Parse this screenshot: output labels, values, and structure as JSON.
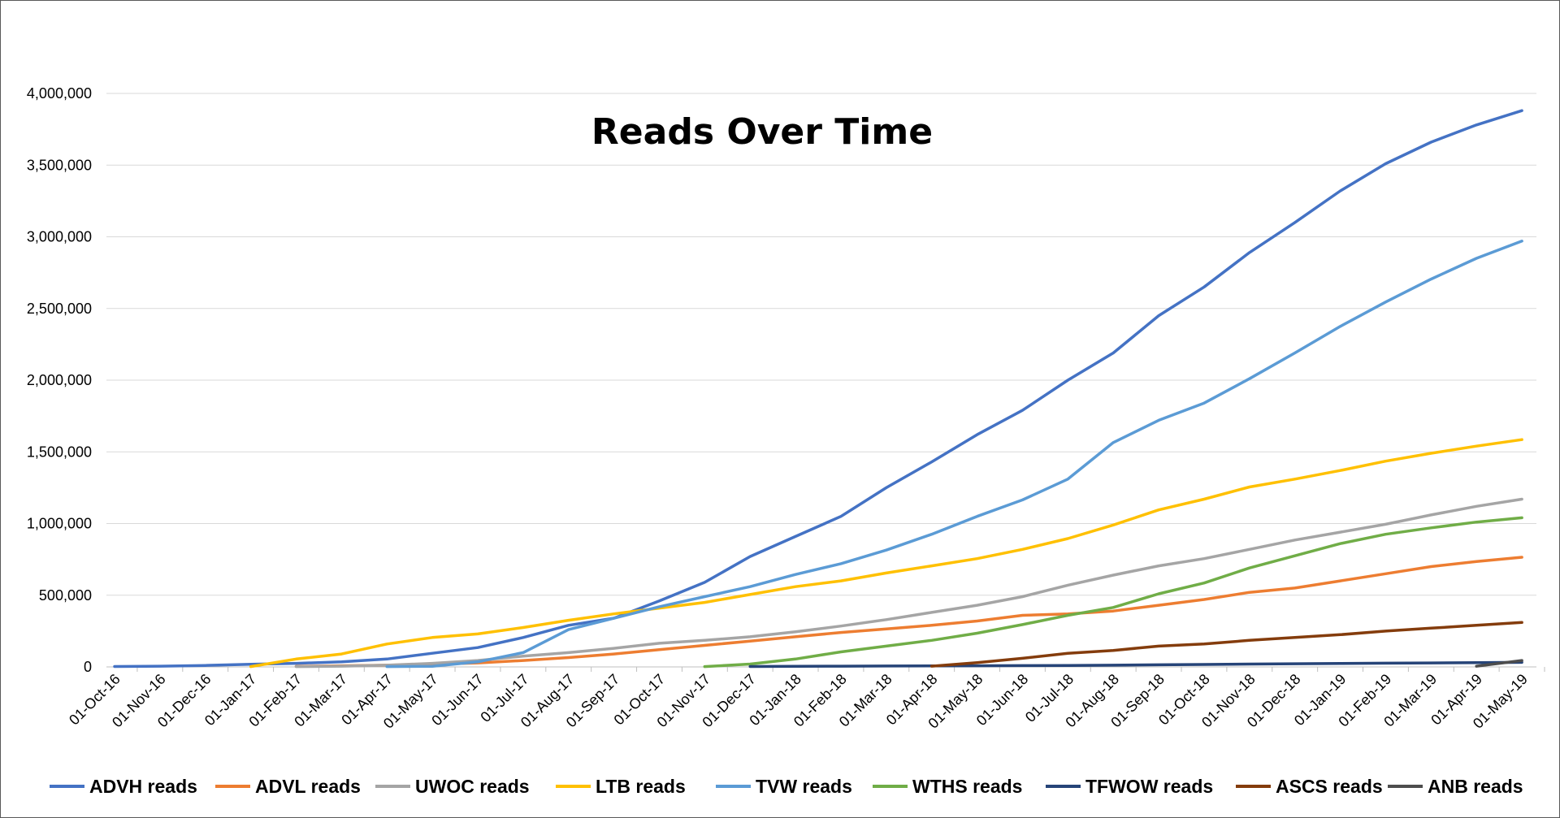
{
  "chart_data": {
    "type": "line",
    "title": "Reads Over Time",
    "xlabel": "",
    "ylabel": "",
    "ylim": [
      0,
      4000000
    ],
    "yticks": [
      0,
      500000,
      1000000,
      1500000,
      2000000,
      2500000,
      3000000,
      3500000,
      4000000
    ],
    "ytick_labels": [
      "0",
      "500,000",
      "1,000,000",
      "1,500,000",
      "2,000,000",
      "2,500,000",
      "3,000,000",
      "3,500,000",
      "4,000,000"
    ],
    "categories": [
      "01-Oct-16",
      "01-Nov-16",
      "01-Dec-16",
      "01-Jan-17",
      "01-Feb-17",
      "01-Mar-17",
      "01-Apr-17",
      "01-May-17",
      "01-Jun-17",
      "01-Jul-17",
      "01-Aug-17",
      "01-Sep-17",
      "01-Oct-17",
      "01-Nov-17",
      "01-Dec-17",
      "01-Jan-18",
      "01-Feb-18",
      "01-Mar-18",
      "01-Apr-18",
      "01-May-18",
      "01-Jun-18",
      "01-Jul-18",
      "01-Aug-18",
      "01-Sep-18",
      "01-Oct-18",
      "01-Nov-18",
      "01-Dec-18",
      "01-Jan-19",
      "01-Feb-19",
      "01-Mar-19",
      "01-Apr-19",
      "01-May-19"
    ],
    "grid": true,
    "legend_position": "bottom",
    "series": [
      {
        "name": "ADVH reads",
        "color": "#4472C4",
        "values": [
          3000,
          5000,
          10000,
          18000,
          25000,
          35000,
          55000,
          95000,
          135000,
          205000,
          290000,
          340000,
          460000,
          590000,
          770000,
          910000,
          1050000,
          1250000,
          1430000,
          1620000,
          1790000,
          2000000,
          2190000,
          2450000,
          2650000,
          2890000,
          3100000,
          3320000,
          3510000,
          3660000,
          3780000,
          3880000
        ]
      },
      {
        "name": "ADVL reads",
        "color": "#ED7D31",
        "values": [
          null,
          null,
          null,
          null,
          4000,
          8000,
          12000,
          18000,
          28000,
          45000,
          65000,
          90000,
          120000,
          150000,
          180000,
          210000,
          240000,
          265000,
          290000,
          320000,
          360000,
          370000,
          390000,
          430000,
          470000,
          520000,
          550000,
          600000,
          650000,
          700000,
          735000,
          765000
        ]
      },
      {
        "name": "UWOC reads",
        "color": "#A5A5A5",
        "values": [
          null,
          null,
          null,
          null,
          2000,
          5000,
          12000,
          25000,
          45000,
          75000,
          100000,
          130000,
          165000,
          185000,
          210000,
          245000,
          285000,
          330000,
          380000,
          430000,
          490000,
          570000,
          640000,
          705000,
          755000,
          820000,
          885000,
          940000,
          995000,
          1060000,
          1120000,
          1170000
        ]
      },
      {
        "name": "LTB reads",
        "color": "#FFC000",
        "values": [
          null,
          null,
          null,
          2000,
          55000,
          90000,
          160000,
          205000,
          230000,
          275000,
          325000,
          370000,
          410000,
          450000,
          505000,
          560000,
          600000,
          655000,
          705000,
          755000,
          820000,
          895000,
          990000,
          1095000,
          1170000,
          1255000,
          1310000,
          1370000,
          1435000,
          1490000,
          1540000,
          1585000
        ]
      },
      {
        "name": "TVW reads",
        "color": "#5B9BD5",
        "values": [
          null,
          null,
          null,
          null,
          null,
          null,
          2000,
          4000,
          35000,
          100000,
          260000,
          340000,
          420000,
          490000,
          560000,
          645000,
          720000,
          815000,
          925000,
          1050000,
          1165000,
          1310000,
          1565000,
          1720000,
          1840000,
          2010000,
          2190000,
          2375000,
          2545000,
          2705000,
          2850000,
          2970000
        ]
      },
      {
        "name": "WTHS reads",
        "color": "#70AD47",
        "values": [
          null,
          null,
          null,
          null,
          null,
          null,
          null,
          null,
          null,
          null,
          null,
          null,
          null,
          2000,
          20000,
          55000,
          105000,
          145000,
          185000,
          235000,
          295000,
          360000,
          415000,
          510000,
          585000,
          690000,
          775000,
          860000,
          925000,
          970000,
          1010000,
          1040000
        ]
      },
      {
        "name": "TFWOW reads",
        "color": "#264478",
        "values": [
          null,
          null,
          null,
          null,
          null,
          null,
          null,
          null,
          null,
          null,
          null,
          null,
          null,
          null,
          3000,
          4000,
          5000,
          6000,
          7000,
          8000,
          9000,
          10000,
          12000,
          15000,
          17000,
          20000,
          22000,
          24000,
          26000,
          28000,
          30000,
          32000
        ]
      },
      {
        "name": "ASCS reads",
        "color": "#843C0C",
        "values": [
          null,
          null,
          null,
          null,
          null,
          null,
          null,
          null,
          null,
          null,
          null,
          null,
          null,
          null,
          null,
          null,
          null,
          null,
          5000,
          30000,
          60000,
          95000,
          115000,
          145000,
          160000,
          185000,
          205000,
          225000,
          250000,
          270000,
          290000,
          310000
        ]
      },
      {
        "name": "ANB reads",
        "color": "#4D4D4D",
        "values": [
          null,
          null,
          null,
          null,
          null,
          null,
          null,
          null,
          null,
          null,
          null,
          null,
          null,
          null,
          null,
          null,
          null,
          null,
          null,
          null,
          null,
          null,
          null,
          null,
          null,
          null,
          null,
          null,
          null,
          null,
          5000,
          45000
        ]
      }
    ]
  }
}
